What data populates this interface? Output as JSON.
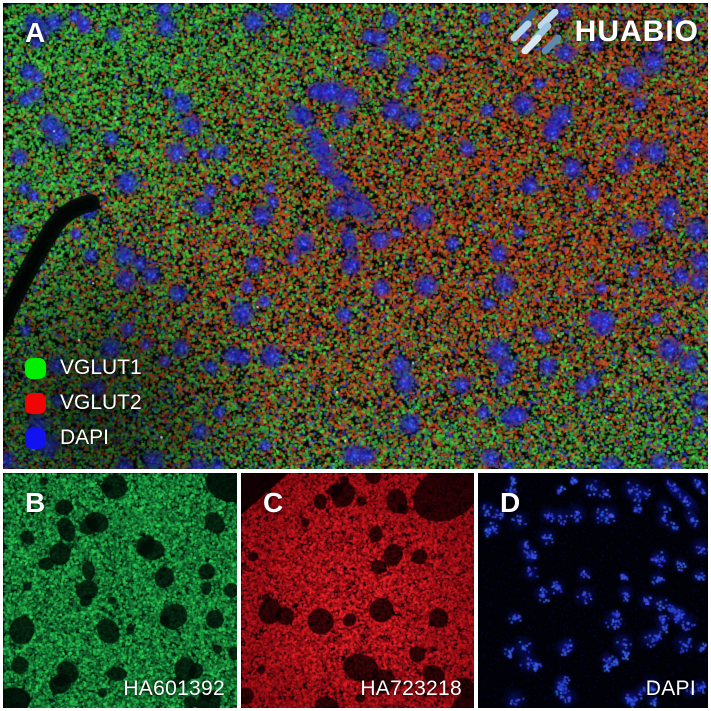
{
  "logo": {
    "text": "HUABIO",
    "mark_stripe_colors": [
      "#35608e",
      "#bed9eb",
      "#b5d3e8",
      "#9cc3dd",
      "#d9e9f3",
      "#5f88b1"
    ]
  },
  "panel_a": {
    "label": "A",
    "legend": [
      {
        "label": "VGLUT1",
        "color": "#00ee00"
      },
      {
        "label": "VGLUT2",
        "color": "#f00505"
      },
      {
        "label": "DAPI",
        "color": "#1212f0"
      }
    ]
  },
  "bottom_panels": [
    {
      "label": "B",
      "caption": "HA601392",
      "channel_color": "#18b457"
    },
    {
      "label": "C",
      "caption": "HA723218",
      "channel_color": "#d41225"
    },
    {
      "label": "D",
      "caption": "DAPI",
      "channel_color": "#2231e6"
    }
  ]
}
